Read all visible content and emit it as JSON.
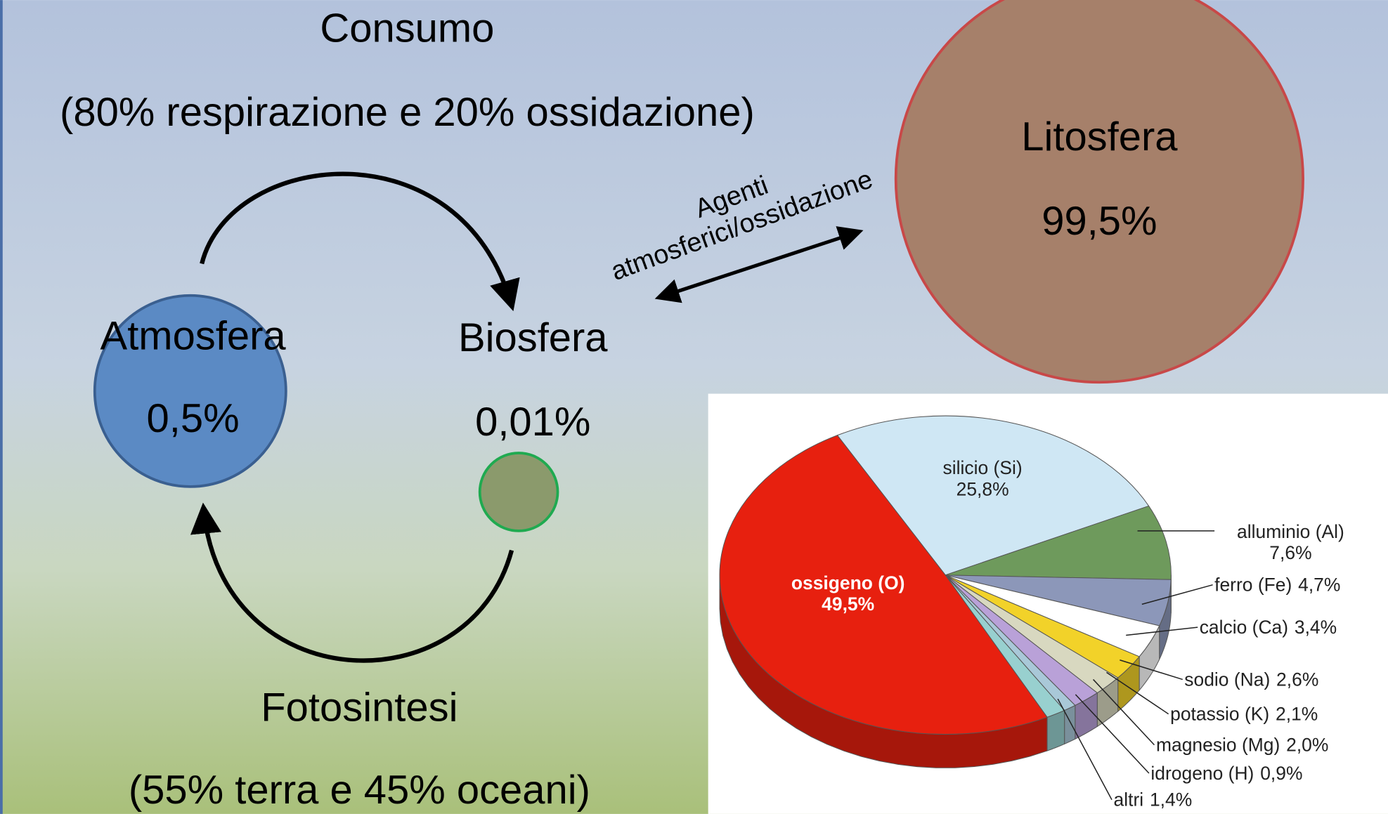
{
  "consumo": {
    "title": "Consumo",
    "detail": "(80% respirazione e 20% ossidazione)"
  },
  "fotosintesi": {
    "title": "Fotosintesi",
    "detail": "(55% terra e 45% oceani)"
  },
  "nodes": [
    {
      "label": "Atmosfera",
      "share": "0,5%"
    },
    {
      "label": "Biosfera",
      "share": "0,01%"
    },
    {
      "label": "Litosfera",
      "share": "99,5%"
    }
  ],
  "link": {
    "label_lines": [
      "Agenti",
      "atmosferici/ossidazione"
    ]
  },
  "chart_data": {
    "type": "pie",
    "categories": [
      "silicio (Si)",
      "alluminio (Al)",
      "ferro (Fe)",
      "calcio (Ca)",
      "sodio (Na)",
      "potassio (K)",
      "magnesio (Mg)",
      "idrogeno (H)",
      "altri",
      "ossigeno (O)"
    ],
    "values": [
      25.8,
      7.6,
      4.7,
      3.4,
      2.6,
      2.1,
      2.0,
      0.9,
      1.4,
      49.5
    ],
    "value_labels": [
      "25,8%",
      "7,6%",
      "4,7%",
      "3,4%",
      "2,6%",
      "2,1%",
      "2,0%",
      "0,9%",
      "1,4%",
      "49,5%"
    ],
    "colors": [
      "#cfe7f4",
      "#6e9a5c",
      "#8c97b9",
      "#ffffff",
      "#f2d229",
      "#d8d8c0",
      "#b9a1d8",
      "#a9c8d8",
      "#98d0cf",
      "#e7200f"
    ]
  }
}
